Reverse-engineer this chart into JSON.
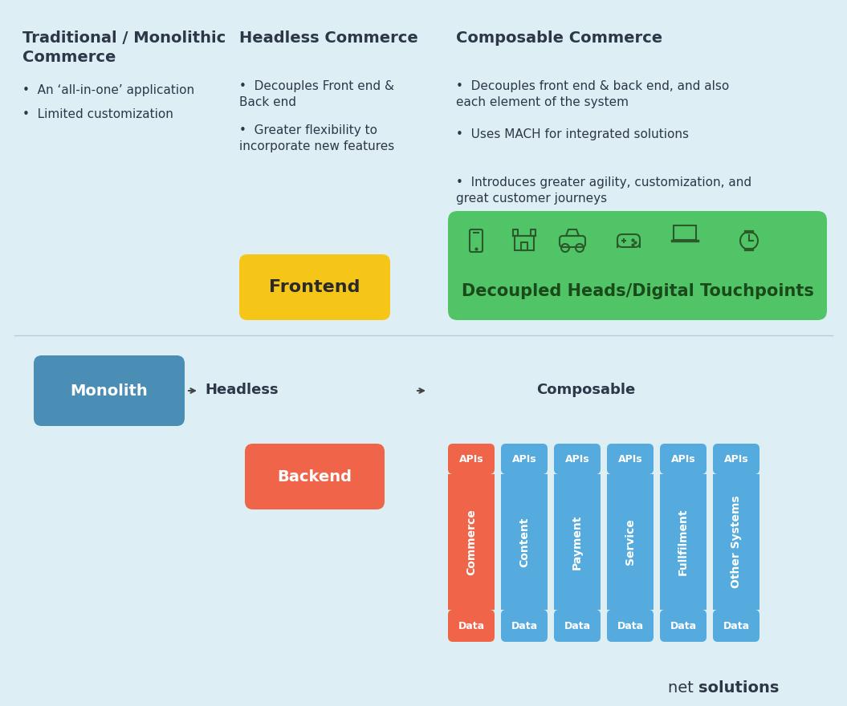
{
  "bg_color": "#ddeef5",
  "text_color": "#2d3748",
  "col1_title_line1": "Traditional / Monolithic",
  "col1_title_line2": "Commerce",
  "col1_bullets": [
    "An ‘all-in-one’ application",
    "Limited customization"
  ],
  "col2_title": "Headless Commerce",
  "col2_bullets": [
    "Decouples Front end &\nBack end",
    "Greater flexibility to\nincorporate new features"
  ],
  "col3_title": "Composable Commerce",
  "col3_bullets": [
    "Decouples front end & back end, and also\neach element of the system",
    "Uses MACH for integrated solutions",
    "Introduces greater agility, customization, and\ngreat customer journeys"
  ],
  "frontend_box_color": "#f5c518",
  "frontend_text": "Frontend",
  "green_box_color": "#52c468",
  "green_box_text": "Decoupled Heads/Digital Touchpoints",
  "monolith_color": "#4a8db5",
  "monolith_text": "Monolith",
  "backend_color": "#f0644a",
  "backend_text": "Backend",
  "commerce_color": "#f0644a",
  "bar_color": "#55aade",
  "api_top_label": "APIs",
  "data_label": "Data",
  "bar_labels": [
    "Commerce",
    "Content",
    "Payment",
    "Service",
    "Fullfilment",
    "Other Systems"
  ],
  "headless_label": "Headless",
  "composable_label": "Composable"
}
